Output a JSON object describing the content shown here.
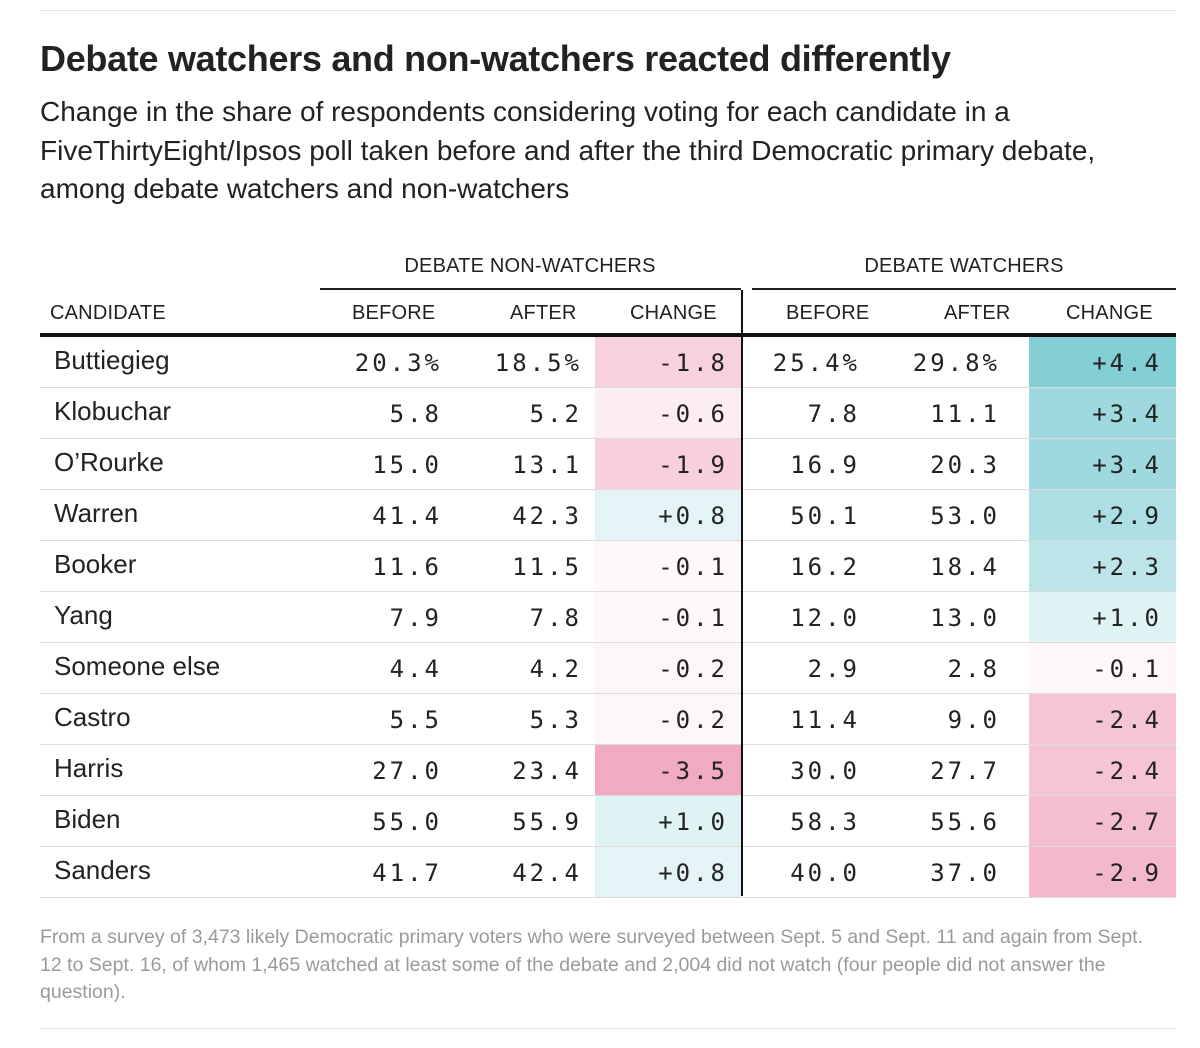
{
  "title": "Debate watchers and non-watchers reacted differently",
  "subtitle": "Change in the share of respondents considering voting for each candidate in a FiveThirtyEight/Ipsos poll taken before and after the third Democratic primary debate, among debate watchers and non-watchers",
  "groups": {
    "non_watchers": "DEBATE NON-WATCHERS",
    "watchers": "DEBATE WATCHERS"
  },
  "columns": {
    "candidate": "CANDIDATE",
    "before": "BEFORE",
    "after": "AFTER",
    "change": "CHANGE"
  },
  "colors": {
    "positive": "#7ccbd3",
    "negative": "#ec8fb0",
    "text": "#222222",
    "footnote": "#9a9a9a"
  },
  "chart_data": {
    "type": "table",
    "title": "Debate watchers and non-watchers reacted differently",
    "rows": [
      {
        "candidate": "Buttiegieg",
        "nw_before": "20.3%",
        "nw_after": "18.5%",
        "nw_change": "-1.8",
        "nw_change_value": -1.8,
        "w_before": "25.4%",
        "w_after": "29.8%",
        "w_change": "+4.4",
        "w_change_value": 4.4
      },
      {
        "candidate": "Klobuchar",
        "nw_before": "5.8",
        "nw_after": "5.2",
        "nw_change": "-0.6",
        "nw_change_value": -0.6,
        "w_before": "7.8",
        "w_after": "11.1",
        "w_change": "+3.4",
        "w_change_value": 3.4
      },
      {
        "candidate": "O’Rourke",
        "nw_before": "15.0",
        "nw_after": "13.1",
        "nw_change": "-1.9",
        "nw_change_value": -1.9,
        "w_before": "16.9",
        "w_after": "20.3",
        "w_change": "+3.4",
        "w_change_value": 3.4
      },
      {
        "candidate": "Warren",
        "nw_before": "41.4",
        "nw_after": "42.3",
        "nw_change": "+0.8",
        "nw_change_value": 0.8,
        "w_before": "50.1",
        "w_after": "53.0",
        "w_change": "+2.9",
        "w_change_value": 2.9
      },
      {
        "candidate": "Booker",
        "nw_before": "11.6",
        "nw_after": "11.5",
        "nw_change": "-0.1",
        "nw_change_value": -0.1,
        "w_before": "16.2",
        "w_after": "18.4",
        "w_change": "+2.3",
        "w_change_value": 2.3
      },
      {
        "candidate": "Yang",
        "nw_before": "7.9",
        "nw_after": "7.8",
        "nw_change": "-0.1",
        "nw_change_value": -0.1,
        "w_before": "12.0",
        "w_after": "13.0",
        "w_change": "+1.0",
        "w_change_value": 1.0
      },
      {
        "candidate": "Someone else",
        "nw_before": "4.4",
        "nw_after": "4.2",
        "nw_change": "-0.2",
        "nw_change_value": -0.2,
        "w_before": "2.9",
        "w_after": "2.8",
        "w_change": "-0.1",
        "w_change_value": -0.1
      },
      {
        "candidate": "Castro",
        "nw_before": "5.5",
        "nw_after": "5.3",
        "nw_change": "-0.2",
        "nw_change_value": -0.2,
        "w_before": "11.4",
        "w_after": "9.0",
        "w_change": "-2.4",
        "w_change_value": -2.4
      },
      {
        "candidate": "Harris",
        "nw_before": "27.0",
        "nw_after": "23.4",
        "nw_change": "-3.5",
        "nw_change_value": -3.5,
        "w_before": "30.0",
        "w_after": "27.7",
        "w_change": "-2.4",
        "w_change_value": -2.4
      },
      {
        "candidate": "Biden",
        "nw_before": "55.0",
        "nw_after": "55.9",
        "nw_change": "+1.0",
        "nw_change_value": 1.0,
        "w_before": "58.3",
        "w_after": "55.6",
        "w_change": "-2.7",
        "w_change_value": -2.7
      },
      {
        "candidate": "Sanders",
        "nw_before": "41.7",
        "nw_after": "42.4",
        "nw_change": "+0.8",
        "nw_change_value": 0.8,
        "w_before": "40.0",
        "w_after": "37.0",
        "w_change": "-2.9",
        "w_change_value": -2.9
      }
    ]
  },
  "footnote": "From a survey of 3,473 likely Democratic primary voters who were surveyed between Sept. 5 and Sept. 11 and again from Sept. 12 to Sept. 16, of whom 1,465 watched at least some of the debate and 2,004 did not watch (four people did not answer the question)."
}
